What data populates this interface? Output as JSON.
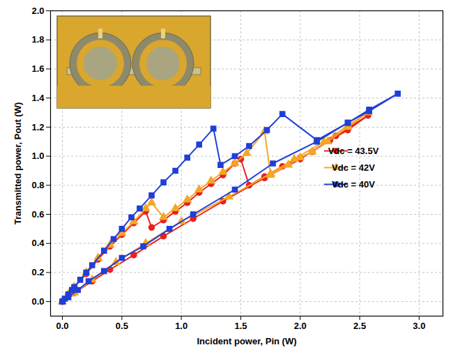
{
  "chart_data": {
    "type": "line",
    "x_label": "Incident power, Pin (W)",
    "y_label": "Transmitted power, Pout (W)",
    "xlim": [
      -0.1,
      3.2
    ],
    "ylim": [
      -0.1,
      2.0
    ],
    "xticks": [
      {
        "value": 0,
        "label": "0.0"
      },
      {
        "value": 0.5,
        "label": "0.5"
      },
      {
        "value": 1,
        "label": "1.0"
      },
      {
        "value": 1.5,
        "label": "1.5"
      },
      {
        "value": 2,
        "label": "2.0"
      },
      {
        "value": 2.5,
        "label": "2.5"
      },
      {
        "value": 3,
        "label": "3.0"
      }
    ],
    "yticks": [
      {
        "value": 0,
        "label": "0.0"
      },
      {
        "value": 0.2,
        "label": "0.2"
      },
      {
        "value": 0.4,
        "label": "0.4"
      },
      {
        "value": 0.6,
        "label": "0.6"
      },
      {
        "value": 0.8,
        "label": "0.8"
      },
      {
        "value": 1,
        "label": "1.0"
      },
      {
        "value": 1.2,
        "label": "1.2"
      },
      {
        "value": 1.4,
        "label": "1.4"
      },
      {
        "value": 1.6,
        "label": "1.6"
      },
      {
        "value": 1.8,
        "label": "1.8"
      },
      {
        "value": 2,
        "label": "2.0"
      }
    ],
    "grid": true,
    "legend": "right",
    "series": [
      {
        "name": "Vdc = 43.5V",
        "color": "#e8211c",
        "marker": "circle",
        "line_style": "solid",
        "x": [
          0,
          0.05,
          0.1,
          0.2,
          0.3,
          0.4,
          0.5,
          0.6,
          0.7,
          0.75,
          0.85,
          0.95,
          1.05,
          1.15,
          1.25,
          1.35,
          1.45,
          1.5,
          1.57,
          1.7,
          1.85,
          2.0,
          2.1,
          2.25,
          2.4,
          2.57,
          2.3,
          2.0,
          1.7,
          1.35,
          1.1,
          0.85,
          0.6,
          0.4,
          0.25,
          0.1,
          0
        ],
        "values": [
          0,
          0.05,
          0.1,
          0.19,
          0.29,
          0.38,
          0.46,
          0.54,
          0.62,
          0.51,
          0.56,
          0.62,
          0.68,
          0.75,
          0.81,
          0.87,
          0.95,
          0.98,
          0.8,
          0.86,
          0.93,
          0.99,
          1.03,
          1.11,
          1.18,
          1.28,
          1.14,
          0.98,
          0.85,
          0.69,
          0.57,
          0.45,
          0.32,
          0.22,
          0.14,
          0.06,
          0
        ]
      },
      {
        "name": "Vdc = 42V",
        "color": "#f5a623",
        "marker": "triangle",
        "line_style": "solid",
        "x": [
          0,
          0.05,
          0.1,
          0.2,
          0.3,
          0.4,
          0.5,
          0.6,
          0.7,
          0.75,
          0.85,
          0.95,
          1.05,
          1.15,
          1.25,
          1.35,
          1.45,
          1.55,
          1.7,
          1.75,
          1.9,
          2.0,
          2.1,
          2.23,
          2.4,
          2.57,
          2.4,
          2.2,
          1.95,
          1.75,
          1.4,
          1.0,
          0.7,
          0.45,
          0.25,
          0.1,
          0
        ],
        "values": [
          0,
          0.05,
          0.1,
          0.2,
          0.3,
          0.39,
          0.47,
          0.55,
          0.64,
          0.68,
          0.58,
          0.64,
          0.7,
          0.77,
          0.83,
          0.89,
          0.95,
          1.02,
          1.17,
          0.87,
          0.94,
          0.99,
          1.03,
          1.1,
          1.2,
          1.3,
          1.21,
          1.1,
          0.98,
          0.88,
          0.72,
          0.55,
          0.4,
          0.27,
          0.15,
          0.06,
          0
        ]
      },
      {
        "name": "Vdc = 40V",
        "color": "#1f3fd8",
        "marker": "square",
        "line_style": "solid",
        "x": [
          0,
          0.02,
          0.05,
          0.08,
          0.1,
          0.15,
          0.2,
          0.25,
          0.35,
          0.43,
          0.5,
          0.58,
          0.65,
          0.75,
          0.85,
          0.95,
          1.05,
          1.15,
          1.27,
          1.33,
          1.45,
          1.57,
          1.72,
          1.85,
          2.14,
          2.4,
          2.58,
          2.82,
          2.58,
          2.4,
          2.14,
          1.77,
          1.45,
          1.1,
          0.9,
          0.68,
          0.5,
          0.35,
          0.22,
          0.13,
          0.05,
          0
        ],
        "values": [
          0,
          0.02,
          0.05,
          0.08,
          0.1,
          0.15,
          0.2,
          0.25,
          0.35,
          0.43,
          0.5,
          0.58,
          0.64,
          0.73,
          0.82,
          0.9,
          0.99,
          1.08,
          1.19,
          0.94,
          1.0,
          1.07,
          1.18,
          1.29,
          1.11,
          1.23,
          1.32,
          1.43,
          1.31,
          1.23,
          1.1,
          0.95,
          0.77,
          0.6,
          0.5,
          0.38,
          0.3,
          0.21,
          0.14,
          0.08,
          0.03,
          0
        ]
      }
    ]
  }
}
